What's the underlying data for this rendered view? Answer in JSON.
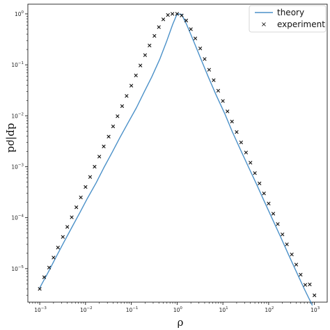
{
  "chart_data": {
    "type": "line",
    "title": "",
    "xlabel": "ρ",
    "ylabel": "dp|ρd",
    "xscale": "log",
    "yscale": "log",
    "xlim": [
      0.00055,
      1900
    ],
    "ylim": [
      2.2e-06,
      1.55
    ],
    "x_ticks": [
      {
        "value": 0.001,
        "base": "10",
        "exp": "−3"
      },
      {
        "value": 0.01,
        "base": "10",
        "exp": "−2"
      },
      {
        "value": 0.1,
        "base": "10",
        "exp": "−1"
      },
      {
        "value": 1,
        "base": "10",
        "exp": "0"
      },
      {
        "value": 10,
        "base": "10",
        "exp": "1"
      },
      {
        "value": 100,
        "base": "10",
        "exp": "2"
      },
      {
        "value": 1000,
        "base": "10",
        "exp": "3"
      }
    ],
    "y_ticks": [
      {
        "value": 1e-05,
        "base": "10",
        "exp": "−5"
      },
      {
        "value": 0.0001,
        "base": "10",
        "exp": "−4"
      },
      {
        "value": 0.001,
        "base": "10",
        "exp": "−3"
      },
      {
        "value": 0.01,
        "base": "10",
        "exp": "−2"
      },
      {
        "value": 0.1,
        "base": "10",
        "exp": "−1"
      },
      {
        "value": 1,
        "base": "10",
        "exp": "0"
      }
    ],
    "grid": false,
    "legend_position": "top-right",
    "colors": {
      "theory": "#4a90c8",
      "experiment": "#111111"
    },
    "series": [
      {
        "name": "theory",
        "style": "line",
        "x": [
          0.001,
          0.0015,
          0.0022,
          0.0033,
          0.005,
          0.0075,
          0.011,
          0.017,
          0.025,
          0.038,
          0.056,
          0.085,
          0.13,
          0.19,
          0.28,
          0.42,
          0.6,
          0.8,
          1.0,
          1.25,
          1.6,
          2.2,
          3.2,
          4.8,
          7.2,
          11,
          16,
          24,
          36,
          54,
          80,
          120,
          180,
          270,
          400,
          600,
          900
        ],
        "y": [
          4.2e-06,
          8.2e-06,
          1.6e-05,
          3.2e-05,
          6.4e-05,
          0.000125,
          0.00024,
          0.00048,
          0.00095,
          0.0019,
          0.0037,
          0.0073,
          0.0145,
          0.029,
          0.058,
          0.13,
          0.3,
          0.62,
          1.0,
          0.98,
          0.63,
          0.32,
          0.14,
          0.058,
          0.025,
          0.011,
          0.0049,
          0.0022,
          0.001,
          0.00046,
          0.00021,
          9.5e-05,
          4.3e-05,
          1.9e-05,
          8.8e-06,
          4e-06,
          1.9e-06
        ]
      },
      {
        "name": "experiment",
        "style": "scatter",
        "x": [
          0.001,
          0.00125,
          0.0016,
          0.002,
          0.0025,
          0.0032,
          0.004,
          0.005,
          0.0063,
          0.0079,
          0.01,
          0.0126,
          0.0158,
          0.02,
          0.025,
          0.032,
          0.04,
          0.05,
          0.063,
          0.079,
          0.1,
          0.126,
          0.158,
          0.2,
          0.25,
          0.32,
          0.4,
          0.5,
          0.63,
          0.79,
          1.0,
          1.26,
          1.58,
          2.0,
          2.5,
          3.2,
          4.0,
          5.0,
          6.3,
          7.9,
          10,
          12.6,
          15.8,
          20,
          25,
          32,
          40,
          50,
          63,
          79,
          100,
          126,
          158,
          200,
          250,
          320,
          400,
          500,
          630,
          790,
          1000
        ],
        "y": [
          4e-06,
          6.8e-06,
          1.05e-05,
          1.65e-05,
          2.6e-05,
          4.2e-05,
          6.6e-05,
          0.000102,
          0.00016,
          0.00025,
          0.0004,
          0.00063,
          0.001,
          0.00158,
          0.0025,
          0.0039,
          0.0062,
          0.0098,
          0.0155,
          0.0245,
          0.039,
          0.062,
          0.097,
          0.155,
          0.24,
          0.37,
          0.55,
          0.78,
          0.95,
          1.0,
          1.0,
          0.93,
          0.74,
          0.5,
          0.33,
          0.21,
          0.13,
          0.08,
          0.05,
          0.031,
          0.0195,
          0.0122,
          0.0077,
          0.0048,
          0.003,
          0.0019,
          0.0012,
          0.00075,
          0.00047,
          0.0003,
          0.00019,
          0.00012,
          7.5e-05,
          4.7e-05,
          3e-05,
          1.9e-05,
          1.2e-05,
          7.6e-06,
          4.8e-06,
          4.9e-06,
          3e-06
        ]
      }
    ]
  }
}
